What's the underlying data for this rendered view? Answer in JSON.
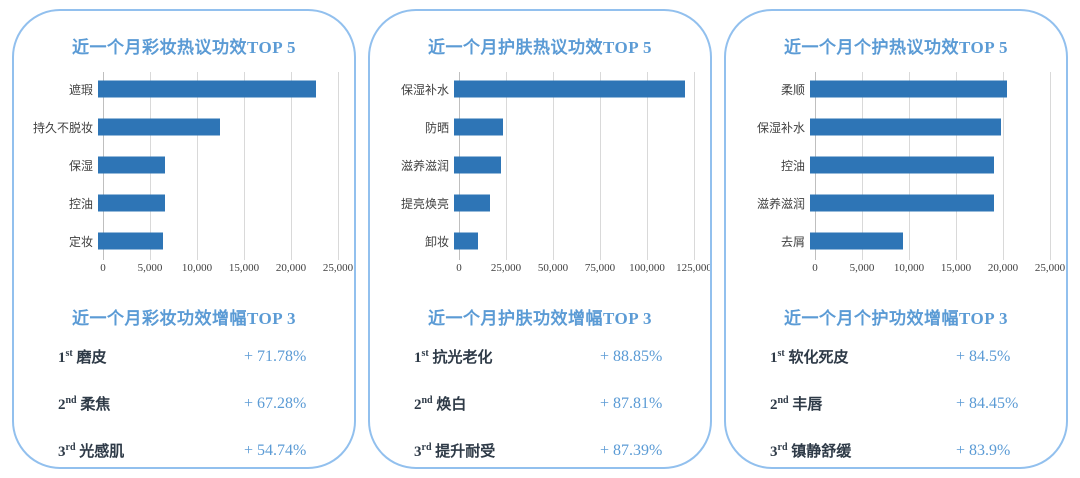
{
  "colors": {
    "bar": "#2E75B6",
    "title_blue": "#5B9BD5",
    "percent_blue": "#5B9BD5",
    "panel_border": "#92C0EE",
    "axis_text": "#404040",
    "rank_text": "#2E3A47",
    "gridline": "#D9D9D9"
  },
  "chart_data": [
    {
      "type": "bar",
      "orientation": "horizontal",
      "title": "近一个月彩妆热议功效TOP 5",
      "categories": [
        "遮瑕",
        "持久不脱妆",
        "保湿",
        "控油",
        "定妆"
      ],
      "values": [
        22700,
        12700,
        7000,
        7000,
        6800
      ],
      "xlim": [
        0,
        25000
      ],
      "xticks": [
        "0",
        "5,000",
        "10,000",
        "15,000",
        "20,000",
        "25,000"
      ],
      "grid": true,
      "legend": false
    },
    {
      "type": "bar",
      "orientation": "horizontal",
      "title": "近一个月护肤热议功效TOP 5",
      "categories": [
        "保湿补水",
        "防晒",
        "滋养滋润",
        "提亮焕亮",
        "卸妆"
      ],
      "values": [
        120500,
        25500,
        24500,
        19000,
        12500
      ],
      "xlim": [
        0,
        125000
      ],
      "xticks": [
        "0",
        "25,000",
        "50,000",
        "75,000",
        "100,000",
        "125,000"
      ],
      "grid": true,
      "legend": false
    },
    {
      "type": "bar",
      "orientation": "horizontal",
      "title": "近一个月个护热议功效TOP 5",
      "categories": [
        "柔顺",
        "保湿补水",
        "控油",
        "滋养滋润",
        "去屑"
      ],
      "values": [
        20500,
        19900,
        19200,
        19200,
        9700
      ],
      "xlim": [
        0,
        25000
      ],
      "xticks": [
        "0",
        "5,000",
        "10,000",
        "15,000",
        "20,000",
        "25,000"
      ],
      "grid": true,
      "legend": false
    }
  ],
  "panels": [
    {
      "growth": {
        "title": "近一个月彩妆功效增幅TOP 3",
        "items": [
          {
            "rank": "1",
            "suffix": "st",
            "name": "磨皮",
            "value": "+ 71.78%"
          },
          {
            "rank": "2",
            "suffix": "nd",
            "name": "柔焦",
            "value": "+ 67.28%"
          },
          {
            "rank": "3",
            "suffix": "rd",
            "name": "光感肌",
            "value": "+ 54.74%"
          }
        ]
      }
    },
    {
      "growth": {
        "title": "近一个月护肤功效增幅TOP 3",
        "items": [
          {
            "rank": "1",
            "suffix": "st",
            "name": "抗光老化",
            "value": "+ 88.85%"
          },
          {
            "rank": "2",
            "suffix": "nd",
            "name": "焕白",
            "value": "+ 87.81%"
          },
          {
            "rank": "3",
            "suffix": "rd",
            "name": "提升耐受",
            "value": "+ 87.39%"
          }
        ]
      }
    },
    {
      "growth": {
        "title": "近一个月个护功效增幅TOP 3",
        "items": [
          {
            "rank": "1",
            "suffix": "st",
            "name": "软化死皮",
            "value": "+ 84.5%"
          },
          {
            "rank": "2",
            "suffix": "nd",
            "name": "丰唇",
            "value": "+ 84.45%"
          },
          {
            "rank": "3",
            "suffix": "rd",
            "name": "镇静舒缓",
            "value": "+ 83.9%"
          }
        ]
      }
    }
  ]
}
